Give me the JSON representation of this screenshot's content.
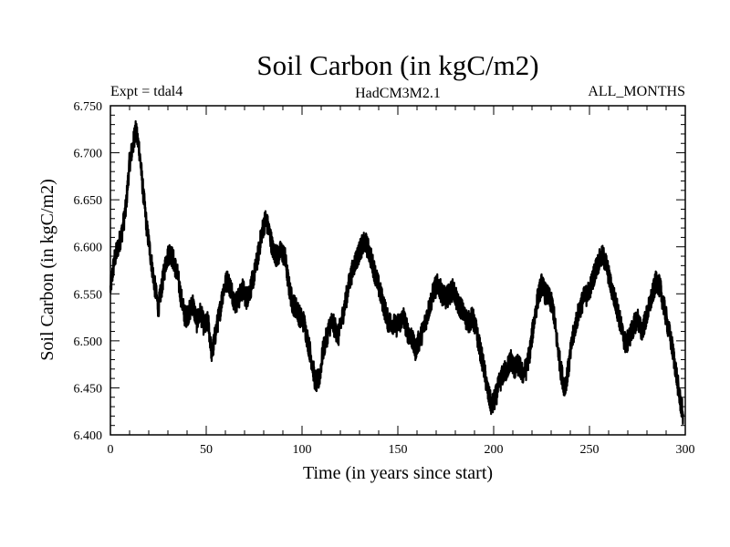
{
  "chart_data": {
    "type": "line",
    "title": "Soil Carbon (in kgC/m2)",
    "subtitle_left": "Expt = tdal4",
    "subtitle_center": "HadCM3M2.1",
    "subtitle_right": "ALL_MONTHS",
    "xlabel": "Time (in years since start)",
    "ylabel": "Soil Carbon (in kgC/m2)",
    "xlim": [
      0,
      300
    ],
    "ylim": [
      6.4,
      6.75
    ],
    "x_ticks": [
      "0",
      "50",
      "100",
      "150",
      "200",
      "250",
      "300"
    ],
    "y_ticks": [
      "6.400",
      "6.450",
      "6.500",
      "6.550",
      "6.600",
      "6.650",
      "6.700",
      "6.750"
    ],
    "grid": false,
    "legend": "none",
    "series": [
      {
        "name": "Soil Carbon",
        "color": "#000000",
        "points": [
          [
            0,
            6.555
          ],
          [
            2,
            6.585
          ],
          [
            4,
            6.6
          ],
          [
            6,
            6.615
          ],
          [
            8,
            6.64
          ],
          [
            10,
            6.69
          ],
          [
            12,
            6.71
          ],
          [
            13,
            6.725
          ],
          [
            15,
            6.705
          ],
          [
            17,
            6.66
          ],
          [
            19,
            6.62
          ],
          [
            21,
            6.59
          ],
          [
            23,
            6.56
          ],
          [
            25,
            6.535
          ],
          [
            27,
            6.56
          ],
          [
            29,
            6.585
          ],
          [
            31,
            6.595
          ],
          [
            33,
            6.585
          ],
          [
            35,
            6.57
          ],
          [
            37,
            6.545
          ],
          [
            39,
            6.525
          ],
          [
            41,
            6.53
          ],
          [
            43,
            6.54
          ],
          [
            45,
            6.52
          ],
          [
            47,
            6.53
          ],
          [
            49,
            6.515
          ],
          [
            51,
            6.52
          ],
          [
            53,
            6.485
          ],
          [
            55,
            6.51
          ],
          [
            57,
            6.53
          ],
          [
            59,
            6.555
          ],
          [
            61,
            6.565
          ],
          [
            63,
            6.555
          ],
          [
            65,
            6.54
          ],
          [
            67,
            6.545
          ],
          [
            69,
            6.555
          ],
          [
            71,
            6.545
          ],
          [
            73,
            6.555
          ],
          [
            75,
            6.57
          ],
          [
            77,
            6.59
          ],
          [
            79,
            6.615
          ],
          [
            81,
            6.63
          ],
          [
            83,
            6.615
          ],
          [
            85,
            6.595
          ],
          [
            87,
            6.59
          ],
          [
            89,
            6.595
          ],
          [
            91,
            6.59
          ],
          [
            93,
            6.56
          ],
          [
            95,
            6.54
          ],
          [
            97,
            6.535
          ],
          [
            99,
            6.525
          ],
          [
            101,
            6.52
          ],
          [
            103,
            6.5
          ],
          [
            105,
            6.48
          ],
          [
            107,
            6.455
          ],
          [
            109,
            6.46
          ],
          [
            111,
            6.49
          ],
          [
            113,
            6.505
          ],
          [
            115,
            6.52
          ],
          [
            117,
            6.515
          ],
          [
            119,
            6.505
          ],
          [
            121,
            6.525
          ],
          [
            123,
            6.545
          ],
          [
            125,
            6.565
          ],
          [
            127,
            6.58
          ],
          [
            129,
            6.59
          ],
          [
            131,
            6.6
          ],
          [
            133,
            6.605
          ],
          [
            135,
            6.595
          ],
          [
            137,
            6.58
          ],
          [
            139,
            6.565
          ],
          [
            141,
            6.55
          ],
          [
            143,
            6.535
          ],
          [
            145,
            6.52
          ],
          [
            147,
            6.52
          ],
          [
            149,
            6.515
          ],
          [
            151,
            6.52
          ],
          [
            153,
            6.525
          ],
          [
            155,
            6.51
          ],
          [
            157,
            6.505
          ],
          [
            159,
            6.49
          ],
          [
            161,
            6.5
          ],
          [
            163,
            6.51
          ],
          [
            165,
            6.525
          ],
          [
            167,
            6.54
          ],
          [
            169,
            6.555
          ],
          [
            171,
            6.56
          ],
          [
            173,
            6.55
          ],
          [
            175,
            6.545
          ],
          [
            177,
            6.55
          ],
          [
            179,
            6.555
          ],
          [
            181,
            6.54
          ],
          [
            183,
            6.535
          ],
          [
            185,
            6.525
          ],
          [
            187,
            6.52
          ],
          [
            189,
            6.525
          ],
          [
            191,
            6.51
          ],
          [
            193,
            6.49
          ],
          [
            195,
            6.47
          ],
          [
            197,
            6.445
          ],
          [
            199,
            6.43
          ],
          [
            201,
            6.44
          ],
          [
            203,
            6.455
          ],
          [
            205,
            6.465
          ],
          [
            207,
            6.47
          ],
          [
            209,
            6.48
          ],
          [
            211,
            6.47
          ],
          [
            213,
            6.475
          ],
          [
            215,
            6.465
          ],
          [
            217,
            6.47
          ],
          [
            219,
            6.49
          ],
          [
            221,
            6.52
          ],
          [
            223,
            6.545
          ],
          [
            225,
            6.56
          ],
          [
            227,
            6.55
          ],
          [
            229,
            6.545
          ],
          [
            231,
            6.535
          ],
          [
            233,
            6.5
          ],
          [
            235,
            6.47
          ],
          [
            237,
            6.45
          ],
          [
            239,
            6.47
          ],
          [
            241,
            6.5
          ],
          [
            243,
            6.52
          ],
          [
            245,
            6.535
          ],
          [
            247,
            6.545
          ],
          [
            249,
            6.55
          ],
          [
            251,
            6.56
          ],
          [
            253,
            6.575
          ],
          [
            255,
            6.585
          ],
          [
            257,
            6.59
          ],
          [
            259,
            6.58
          ],
          [
            261,
            6.56
          ],
          [
            263,
            6.545
          ],
          [
            265,
            6.53
          ],
          [
            267,
            6.51
          ],
          [
            269,
            6.495
          ],
          [
            271,
            6.505
          ],
          [
            273,
            6.515
          ],
          [
            275,
            6.525
          ],
          [
            277,
            6.51
          ],
          [
            279,
            6.52
          ],
          [
            281,
            6.535
          ],
          [
            283,
            6.55
          ],
          [
            285,
            6.565
          ],
          [
            287,
            6.555
          ],
          [
            289,
            6.535
          ],
          [
            291,
            6.515
          ],
          [
            293,
            6.495
          ],
          [
            295,
            6.47
          ],
          [
            297,
            6.44
          ],
          [
            299,
            6.42
          ]
        ]
      }
    ]
  }
}
